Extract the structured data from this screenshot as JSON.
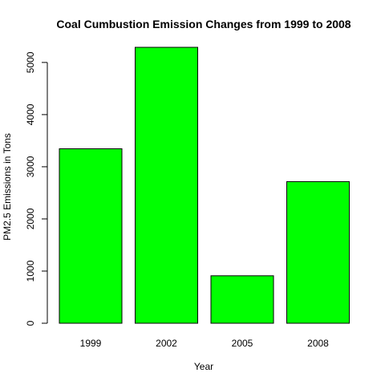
{
  "chart_data": {
    "type": "bar",
    "title": "Coal Cumbustion Emission Changes from 1999 to 2008",
    "xlabel": "Year",
    "ylabel": "PM2.5 Emissions in Tons",
    "categories": [
      "1999",
      "2002",
      "2005",
      "2008"
    ],
    "values": [
      3345,
      5290,
      910,
      2715
    ],
    "ylim": [
      0,
      5290
    ],
    "yticks": [
      0,
      1000,
      2000,
      3000,
      4000,
      5000
    ],
    "bar_color": "#00ff00",
    "bar_border": "#000000",
    "grid": false,
    "legend": "none"
  }
}
